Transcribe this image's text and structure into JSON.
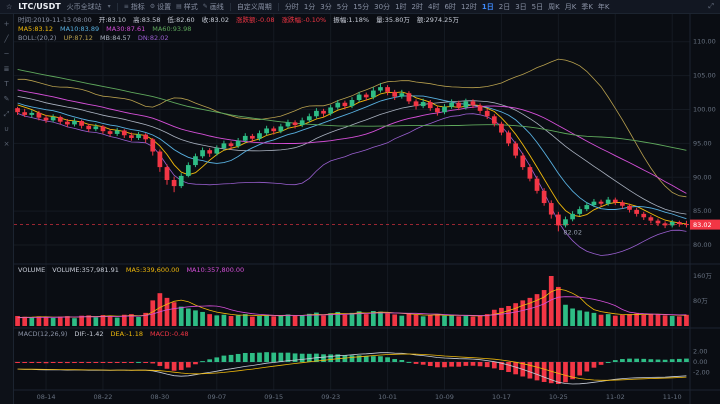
{
  "topbar": {
    "star_icon": "☆",
    "symbol": "LTC/USDT",
    "exchange": "火币全球站",
    "caret_icon": "▾",
    "menus": [
      {
        "glyph": "≡",
        "label": "指标"
      },
      {
        "glyph": "⚙",
        "label": "设置"
      },
      {
        "glyph": "▤",
        "label": "样式"
      },
      {
        "glyph": "✎",
        "label": "画线"
      }
    ],
    "custom_period": "自定义周期",
    "timeframes": [
      "分时",
      "1分",
      "3分",
      "5分",
      "15分",
      "30分",
      "1时",
      "2时",
      "4时",
      "6时",
      "12时",
      "1日",
      "2日",
      "3日",
      "5日",
      "周K",
      "月K",
      "季K",
      "年K"
    ],
    "active_timeframe": "1日",
    "expand_icon": "⤢"
  },
  "toolbar": {
    "tools": [
      {
        "name": "crosshair",
        "glyph": "+"
      },
      {
        "name": "trend-line",
        "glyph": "╱"
      },
      {
        "name": "horizontal-line",
        "glyph": "─"
      },
      {
        "name": "fibonacci",
        "glyph": "≣"
      },
      {
        "name": "text",
        "glyph": "T"
      },
      {
        "name": "brush",
        "glyph": "✎"
      },
      {
        "name": "measure",
        "glyph": "⤢"
      },
      {
        "name": "magnet",
        "glyph": "∪"
      },
      {
        "name": "eraser",
        "glyph": "×"
      }
    ]
  },
  "legend": {
    "info": [
      {
        "t": "时间:2019-11-13 08:00",
        "c": "#8b93a6"
      },
      {
        "t": "开:83.10",
        "c": "#c8cdd8"
      },
      {
        "t": "高:83.58",
        "c": "#c8cdd8"
      },
      {
        "t": "低:82.60",
        "c": "#c8cdd8"
      },
      {
        "t": "收:83.02",
        "c": "#c8cdd8"
      },
      {
        "t": "涨跌额:-0.08",
        "c": "#f23645"
      },
      {
        "t": "涨跌幅:-0.10%",
        "c": "#f23645"
      },
      {
        "t": "振幅:1.18%",
        "c": "#c8cdd8"
      },
      {
        "t": "量:35.80万",
        "c": "#c8cdd8"
      },
      {
        "t": "额:2974.25万",
        "c": "#c8cdd8"
      }
    ],
    "ma": [
      {
        "t": "MA5:83.12",
        "c": "#f0b90b"
      },
      {
        "t": "MA10:83.89",
        "c": "#58b0e0"
      },
      {
        "t": "MA30:87.61",
        "c": "#d54fd8"
      },
      {
        "t": "MA60:93.98",
        "c": "#5fa85c"
      }
    ],
    "boll": [
      {
        "t": "BOLL:(20,2)",
        "c": "#8b93a6"
      },
      {
        "t": "UP:87.12",
        "c": "#b9a14e"
      },
      {
        "t": "MB:84.57",
        "c": "#aab2c0"
      },
      {
        "t": "DN:82.02",
        "c": "#9a5fd0"
      }
    ]
  },
  "volume_pane": {
    "legend": [
      {
        "t": "VOLUME",
        "c": "#c8cdd8"
      },
      {
        "t": "VOLUME:357,981.91",
        "c": "#c8cdd8"
      },
      {
        "t": "MA5:339,600.00",
        "c": "#f0b90b"
      },
      {
        "t": "MA10:357,800.00",
        "c": "#d54fd8"
      }
    ],
    "axis": [
      {
        "label": "160万",
        "v": 1600
      },
      {
        "label": "80万",
        "v": 800
      }
    ]
  },
  "macd_pane": {
    "legend": [
      {
        "t": "MACD(12,26,9)",
        "c": "#8b93a6"
      },
      {
        "t": "DIF:-1.42",
        "c": "#c8cdd8"
      },
      {
        "t": "DEA:-1.18",
        "c": "#f0b90b"
      },
      {
        "t": "MACD:-0.48",
        "c": "#f23645"
      }
    ],
    "axis": [
      {
        "label": "2.00",
        "v": 2
      },
      {
        "label": "0.00",
        "v": 0
      },
      {
        "label": "-2.00",
        "v": -2
      }
    ]
  },
  "chart_data": {
    "type": "candlestick",
    "symbol": "LTC/USDT",
    "timeframe": "1日",
    "price_range": [
      77.5,
      113.5
    ],
    "price_axis_ticks": [
      110,
      105,
      100,
      95,
      90,
      85,
      80
    ],
    "current_price": 83.02,
    "low_marker": {
      "index": 76,
      "price": 82.02,
      "label": "82.02"
    },
    "time_axis": {
      "start_index": 4,
      "step": 8,
      "labels": [
        "08-14",
        "08-22",
        "08-30",
        "09-07",
        "09-15",
        "09-23",
        "10-01",
        "10-09",
        "10-17",
        "10-25",
        "11-02",
        "11-10"
      ]
    },
    "warmup": {
      "count": 60,
      "start": 112,
      "end": 100.2,
      "volume": 260
    },
    "colors": {
      "up": "#2ebd85",
      "down": "#f23645"
    },
    "indicators": {
      "ma": [
        {
          "n": 5,
          "color": "#f0b90b"
        },
        {
          "n": 10,
          "color": "#58b0e0"
        },
        {
          "n": 30,
          "color": "#d54fd8"
        },
        {
          "n": 60,
          "color": "#5fa85c"
        }
      ],
      "boll": {
        "n": 20,
        "k": 2,
        "up": "#b9a14e",
        "mid": "#aab2c0",
        "dn": "#9a5fd0"
      },
      "vol_ma": [
        {
          "n": 5,
          "color": "#f0b90b"
        },
        {
          "n": 10,
          "color": "#d54fd8"
        }
      ],
      "macd": {
        "fast": 12,
        "slow": 26,
        "signal": 9,
        "dif_color": "#c8cdd8",
        "dea_color": "#f0b90b"
      }
    },
    "candles": [
      [
        100.2,
        100.4,
        99.2,
        99.6,
        320
      ],
      [
        99.6,
        100.1,
        98.9,
        99.2,
        295
      ],
      [
        99.2,
        99.9,
        98.8,
        99.5,
        270
      ],
      [
        99.5,
        99.8,
        98.4,
        98.8,
        310
      ],
      [
        98.8,
        99.2,
        98.0,
        98.4,
        285
      ],
      [
        98.4,
        99.3,
        98.1,
        98.9,
        260
      ],
      [
        98.9,
        99.1,
        97.8,
        98.2,
        300
      ],
      [
        98.2,
        98.6,
        97.4,
        97.8,
        315
      ],
      [
        97.8,
        98.7,
        97.5,
        98.3,
        250
      ],
      [
        98.3,
        98.5,
        97.2,
        97.6,
        330
      ],
      [
        97.6,
        97.9,
        96.7,
        97.1,
        340
      ],
      [
        97.1,
        97.9,
        96.8,
        97.5,
        280
      ],
      [
        97.5,
        97.7,
        96.4,
        96.8,
        350
      ],
      [
        96.8,
        97.1,
        96.0,
        96.4,
        330
      ],
      [
        96.4,
        97.3,
        96.1,
        96.9,
        270
      ],
      [
        96.9,
        97.1,
        95.8,
        96.2,
        360
      ],
      [
        96.2,
        96.6,
        95.4,
        95.8,
        380
      ],
      [
        95.8,
        96.7,
        95.5,
        96.3,
        290
      ],
      [
        96.3,
        96.5,
        95.1,
        95.6,
        420
      ],
      [
        95.6,
        95.8,
        93.2,
        93.8,
        820
      ],
      [
        93.8,
        94.1,
        90.8,
        91.5,
        1050
      ],
      [
        91.5,
        91.9,
        88.9,
        89.6,
        900
      ],
      [
        89.6,
        90.1,
        87.8,
        88.7,
        760
      ],
      [
        88.7,
        90.6,
        88.4,
        90.2,
        620
      ],
      [
        90.2,
        92.2,
        90.0,
        91.8,
        560
      ],
      [
        91.8,
        93.5,
        91.5,
        93.1,
        500
      ],
      [
        93.1,
        94.4,
        92.8,
        94.0,
        450
      ],
      [
        94.0,
        94.3,
        93.0,
        93.5,
        380
      ],
      [
        93.5,
        94.7,
        93.2,
        94.3,
        340
      ],
      [
        94.3,
        95.4,
        94.0,
        95.0,
        360
      ],
      [
        95.0,
        95.3,
        94.1,
        94.6,
        320
      ],
      [
        94.6,
        95.8,
        94.3,
        95.4,
        340
      ],
      [
        95.4,
        96.5,
        95.1,
        96.1,
        380
      ],
      [
        96.1,
        96.4,
        95.2,
        95.7,
        300
      ],
      [
        95.7,
        96.9,
        95.4,
        96.5,
        330
      ],
      [
        96.5,
        97.6,
        96.2,
        97.2,
        360
      ],
      [
        97.2,
        97.5,
        96.3,
        96.8,
        310
      ],
      [
        96.8,
        97.9,
        96.5,
        97.5,
        340
      ],
      [
        97.5,
        98.5,
        97.2,
        98.1,
        370
      ],
      [
        98.1,
        98.4,
        97.2,
        97.7,
        320
      ],
      [
        97.7,
        98.8,
        97.4,
        98.4,
        350
      ],
      [
        98.4,
        99.4,
        98.1,
        99.0,
        390
      ],
      [
        99.0,
        100.2,
        98.7,
        99.8,
        430
      ],
      [
        99.8,
        100.1,
        98.9,
        99.4,
        340
      ],
      [
        99.4,
        100.7,
        99.1,
        100.3,
        410
      ],
      [
        100.3,
        101.4,
        100.0,
        101.0,
        450
      ],
      [
        101.0,
        101.3,
        100.0,
        100.5,
        360
      ],
      [
        100.5,
        101.8,
        100.2,
        101.4,
        420
      ],
      [
        101.4,
        102.6,
        101.1,
        102.2,
        470
      ],
      [
        102.2,
        102.5,
        101.3,
        101.8,
        380
      ],
      [
        101.8,
        103.3,
        101.5,
        102.8,
        480
      ],
      [
        102.8,
        103.9,
        102.5,
        103.3,
        460
      ],
      [
        103.3,
        103.6,
        102.1,
        102.6,
        400
      ],
      [
        102.6,
        102.9,
        101.4,
        101.9,
        370
      ],
      [
        101.9,
        102.9,
        101.6,
        102.4,
        330
      ],
      [
        102.4,
        102.7,
        100.8,
        101.2,
        390
      ],
      [
        101.2,
        101.5,
        100.0,
        100.5,
        360
      ],
      [
        100.5,
        101.6,
        100.2,
        101.1,
        310
      ],
      [
        101.1,
        101.4,
        99.8,
        100.2,
        350
      ],
      [
        100.2,
        100.5,
        99.1,
        99.6,
        380
      ],
      [
        99.6,
        100.8,
        99.3,
        100.4,
        330
      ],
      [
        100.4,
        101.5,
        100.1,
        101.0,
        340
      ],
      [
        101.0,
        101.3,
        99.9,
        100.3,
        310
      ],
      [
        100.3,
        101.6,
        100.0,
        101.2,
        330
      ],
      [
        101.2,
        101.5,
        100.2,
        100.6,
        300
      ],
      [
        100.6,
        100.9,
        99.4,
        99.8,
        340
      ],
      [
        99.8,
        100.1,
        98.6,
        99.0,
        380
      ],
      [
        99.0,
        99.3,
        97.5,
        97.9,
        520
      ],
      [
        97.9,
        98.2,
        96.2,
        96.6,
        580
      ],
      [
        96.6,
        96.9,
        94.6,
        95.0,
        640
      ],
      [
        95.0,
        95.3,
        92.8,
        93.2,
        730
      ],
      [
        93.2,
        93.6,
        91.1,
        91.5,
        820
      ],
      [
        91.5,
        91.9,
        89.4,
        89.8,
        900
      ],
      [
        89.8,
        90.2,
        87.6,
        88.0,
        1020
      ],
      [
        88.0,
        88.4,
        85.8,
        86.2,
        1150
      ],
      [
        86.2,
        86.6,
        83.9,
        84.5,
        1600
      ],
      [
        84.5,
        84.9,
        82.02,
        82.9,
        1250
      ],
      [
        82.9,
        84.2,
        82.6,
        83.8,
        680
      ],
      [
        83.8,
        85.0,
        83.5,
        84.6,
        560
      ],
      [
        84.6,
        85.7,
        84.3,
        85.3,
        500
      ],
      [
        85.3,
        86.3,
        85.0,
        85.9,
        460
      ],
      [
        85.9,
        86.8,
        85.6,
        86.4,
        420
      ],
      [
        86.4,
        86.7,
        85.7,
        86.1,
        360
      ],
      [
        86.1,
        87.1,
        85.8,
        86.7,
        380
      ],
      [
        86.7,
        87.0,
        85.9,
        86.3,
        330
      ],
      [
        86.3,
        86.6,
        85.4,
        85.8,
        350
      ],
      [
        85.8,
        86.1,
        84.8,
        85.2,
        380
      ],
      [
        85.2,
        85.5,
        84.2,
        84.6,
        400
      ],
      [
        84.6,
        84.9,
        83.7,
        84.1,
        360
      ],
      [
        84.1,
        84.4,
        83.2,
        83.6,
        390
      ],
      [
        83.6,
        83.9,
        82.8,
        83.2,
        370
      ],
      [
        83.2,
        83.5,
        82.5,
        82.9,
        340
      ],
      [
        82.9,
        83.7,
        82.6,
        83.4,
        320
      ],
      [
        83.4,
        83.6,
        82.7,
        83.1,
        310
      ],
      [
        83.1,
        83.58,
        82.6,
        83.02,
        358
      ]
    ]
  }
}
